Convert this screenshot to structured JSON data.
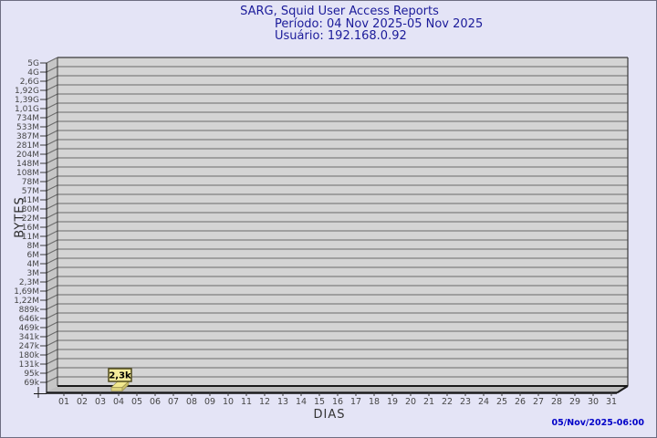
{
  "header": {
    "title": "SARG, Squid User Access Reports",
    "period": "Período: 04 Nov 2025-05 Nov 2025",
    "user": "Usuário: 192.168.0.92"
  },
  "footer": {
    "timestamp": "05/Nov/2025-06:00"
  },
  "chart_data": {
    "type": "bar",
    "title": "SARG, Squid User Access Reports",
    "subtitle": "Período: 04 Nov 2025-05 Nov 2025 — Usuário: 192.168.0.92",
    "xlabel": "DIAS",
    "ylabel": "BYTES",
    "yscale": "log",
    "ylim": [
      "69k",
      "5G"
    ],
    "grid": true,
    "y_ticks": [
      "5G",
      "4G",
      "2,6G",
      "1,92G",
      "1,39G",
      "1,01G",
      "734M",
      "533M",
      "387M",
      "281M",
      "204M",
      "148M",
      "108M",
      "78M",
      "57M",
      "41M",
      "30M",
      "22M",
      "16M",
      "11M",
      "8M",
      "6M",
      "4M",
      "3M",
      "2,3M",
      "1,69M",
      "1,22M",
      "889k",
      "646k",
      "469k",
      "341k",
      "247k",
      "180k",
      "131k",
      "95k",
      "69k"
    ],
    "x_ticks": [
      "01",
      "02",
      "03",
      "04",
      "05",
      "06",
      "07",
      "08",
      "09",
      "10",
      "11",
      "12",
      "13",
      "14",
      "15",
      "16",
      "17",
      "18",
      "19",
      "20",
      "21",
      "22",
      "23",
      "24",
      "25",
      "26",
      "27",
      "28",
      "29",
      "30",
      "31"
    ],
    "bars": [
      {
        "day": "04",
        "label": "2,3k",
        "value_bytes": 2300
      }
    ],
    "colors": {
      "background": "#E4E4F6",
      "plot_bg": "#D4D4D4",
      "wall": "#C6C6C6",
      "floor": "#BDBDBD",
      "grid": "#6A6A6A",
      "axis": "#1A1A1A",
      "edge": "#3A3A3A",
      "tick_text": "#454545",
      "bar_top": "#F1E88F",
      "bar_front": "#DCD27E",
      "bar_side": "#CBC06A",
      "bar_stroke": "#948A4E",
      "value_bg": "#F4EB9B",
      "value_border": "#4F4A1D",
      "value_text": "#000000",
      "title": "#1B1B9A",
      "timestamp": "#0000C8"
    }
  }
}
